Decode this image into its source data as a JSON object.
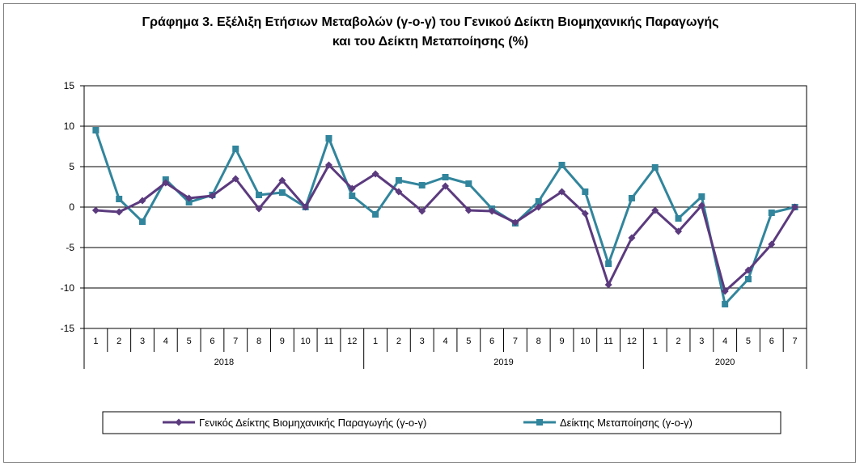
{
  "chart_data": {
    "type": "line",
    "title_line1": "Γράφημα 3. Εξέλιξη Ετήσιων Μεταβολών (γ-ο-γ) του Γενικού Δείκτη Βιομηχανικής Παραγωγής",
    "title_line2": "και του Δείκτη Μεταποίησης (%)",
    "ylim": [
      -15,
      15
    ],
    "yticks": [
      15,
      10,
      5,
      0,
      -5,
      -10,
      -15
    ],
    "grid": true,
    "legend_position": "bottom",
    "months": [
      "1",
      "2",
      "3",
      "4",
      "5",
      "6",
      "7",
      "8",
      "9",
      "10",
      "11",
      "12",
      "1",
      "2",
      "3",
      "4",
      "5",
      "6",
      "7",
      "8",
      "9",
      "10",
      "11",
      "12",
      "1",
      "2",
      "3",
      "4",
      "5",
      "6",
      "7"
    ],
    "years": [
      {
        "label": "2018",
        "count": 12
      },
      {
        "label": "2019",
        "count": 12
      },
      {
        "label": "2020",
        "count": 7
      }
    ],
    "series": [
      {
        "name": "Γενικός Δείκτης Βιομηχανικής Παραγωγής (γ-ο-γ)",
        "color": "#5b3a7e",
        "marker": "diamond",
        "values": [
          -0.4,
          -0.6,
          0.8,
          3.0,
          1.1,
          1.4,
          3.5,
          -0.2,
          3.3,
          0.0,
          5.2,
          2.3,
          4.1,
          1.9,
          -0.5,
          2.6,
          -0.4,
          -0.5,
          -1.9,
          0.0,
          1.9,
          -0.8,
          -9.6,
          -3.8,
          -0.4,
          -3.0,
          0.2,
          -10.4,
          -7.8,
          -4.6,
          0.0
        ]
      },
      {
        "name": "Δείκτης Μεταποίησης (γ-ο-γ)",
        "color": "#31859c",
        "marker": "square",
        "values": [
          9.5,
          1.0,
          -1.8,
          3.4,
          0.6,
          1.5,
          7.2,
          1.5,
          1.8,
          0.0,
          8.5,
          1.4,
          -0.9,
          3.3,
          2.7,
          3.7,
          2.9,
          -0.2,
          -2.0,
          0.7,
          5.2,
          1.9,
          -7.0,
          1.1,
          4.9,
          -1.4,
          1.3,
          -12.0,
          -8.9,
          -0.7,
          0.0
        ]
      }
    ]
  }
}
